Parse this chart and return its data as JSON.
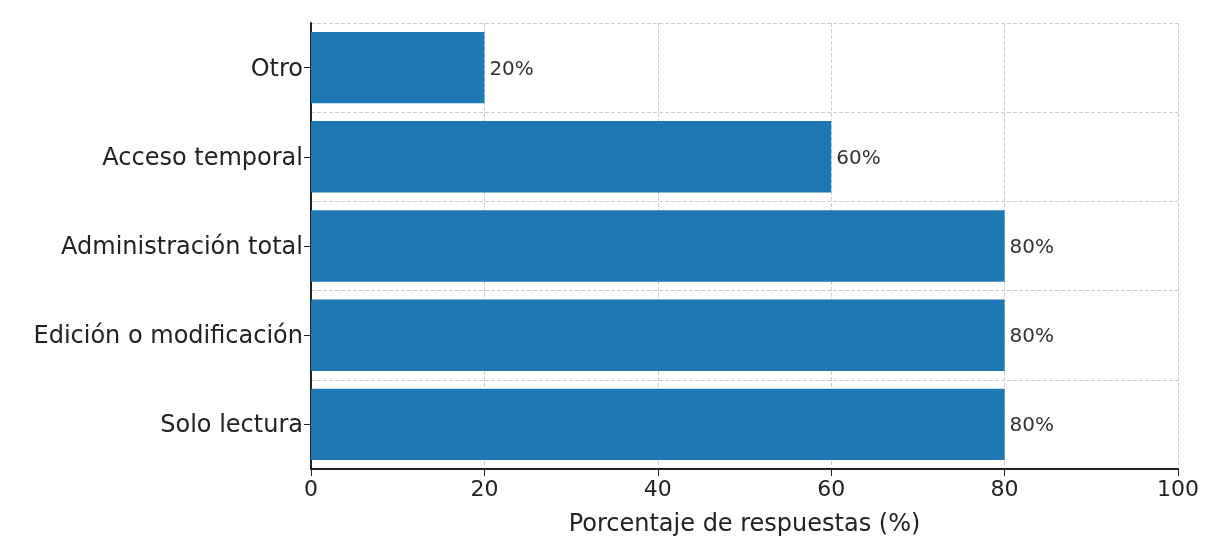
{
  "chart_data": {
    "type": "bar",
    "orientation": "horizontal",
    "xlabel": "Porcentaje de respuestas (%)",
    "categories": [
      "Otro",
      "Acceso temporal",
      "Administración total",
      "Edición o modificación",
      "Solo lectura"
    ],
    "values": [
      20,
      60,
      80,
      80,
      80
    ],
    "color": "#1f77b4",
    "value_labels": [
      "20%",
      "60%",
      "80%",
      "80%",
      "80%"
    ],
    "xlim": [
      0,
      100
    ],
    "xticks": [
      0,
      20,
      40,
      60,
      80,
      100
    ],
    "grid": true
  }
}
